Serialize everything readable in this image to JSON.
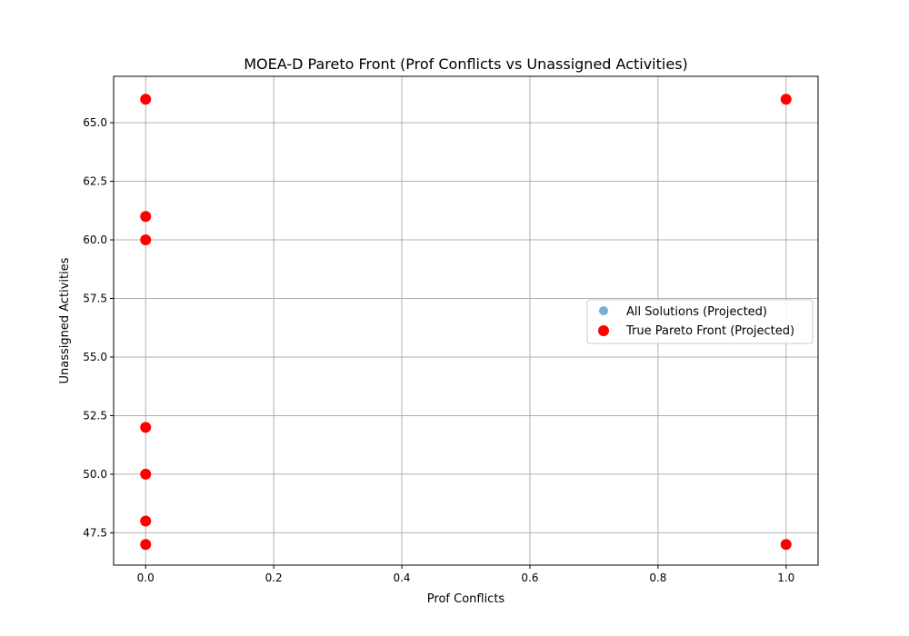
{
  "chart_data": {
    "type": "scatter",
    "title": "MOEA-D Pareto Front (Prof Conflicts vs Unassigned Activities)",
    "xlabel": "Prof Conflicts",
    "ylabel": "Unassigned Activities",
    "xlim": [
      -0.05,
      1.05
    ],
    "ylim": [
      46.12,
      66.98
    ],
    "x_ticks": [
      0.0,
      0.2,
      0.4,
      0.6,
      0.8,
      1.0
    ],
    "x_tick_labels": [
      "0.0",
      "0.2",
      "0.4",
      "0.6",
      "0.8",
      "1.0"
    ],
    "y_ticks": [
      47.5,
      50.0,
      52.5,
      55.0,
      57.5,
      60.0,
      62.5,
      65.0
    ],
    "y_tick_labels": [
      "47.5",
      "50.0",
      "52.5",
      "55.0",
      "57.5",
      "60.0",
      "62.5",
      "65.0"
    ],
    "grid": true,
    "legend_position": "center-right",
    "series": [
      {
        "name": "All Solutions (Projected)",
        "color": "#1f77b4",
        "alpha": 0.6,
        "points": [
          [
            0,
            47
          ],
          [
            0,
            48
          ],
          [
            0,
            50
          ],
          [
            0,
            52
          ],
          [
            0,
            60
          ],
          [
            0,
            61
          ],
          [
            0,
            66
          ],
          [
            1,
            47
          ],
          [
            1,
            66
          ]
        ]
      },
      {
        "name": "True Pareto Front (Projected)",
        "color": "#ff0000",
        "alpha": 1.0,
        "points": [
          [
            0,
            47
          ],
          [
            0,
            48
          ],
          [
            0,
            50
          ],
          [
            0,
            52
          ],
          [
            0,
            60
          ],
          [
            0,
            61
          ],
          [
            0,
            66
          ],
          [
            1,
            47
          ],
          [
            1,
            66
          ]
        ]
      }
    ]
  }
}
